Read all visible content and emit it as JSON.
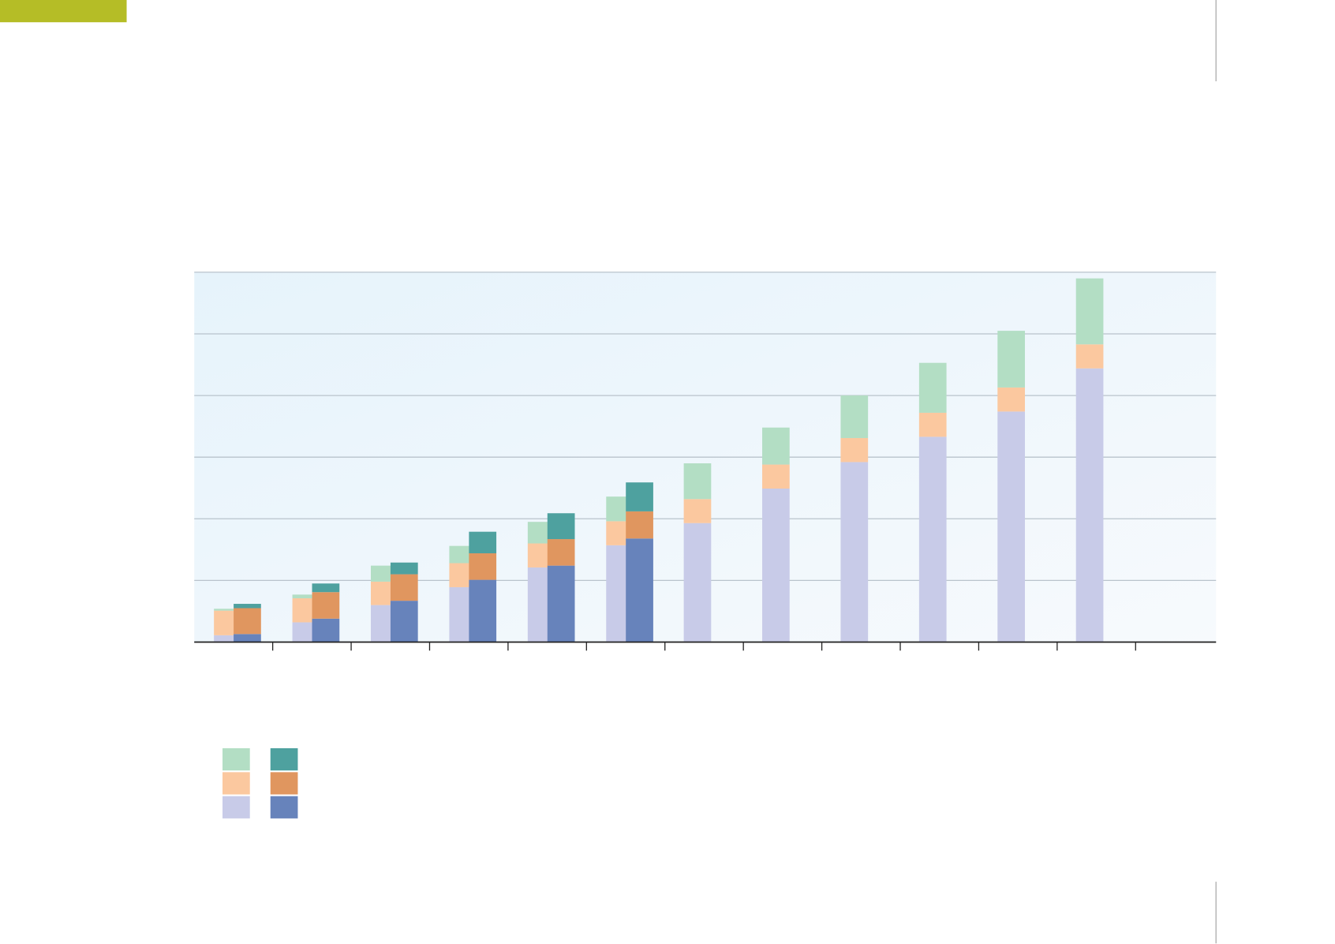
{
  "chart_data": {
    "type": "bar",
    "stacked": true,
    "grid": true,
    "categories": [
      null,
      null,
      null,
      null,
      null,
      null,
      null,
      null,
      null,
      null,
      null,
      null
    ],
    "ylim": [
      0,
      6
    ],
    "yticks": [
      0,
      1,
      2,
      3,
      4,
      5,
      6
    ],
    "series": [
      {
        "stack": "a",
        "color": "#c8cbe8",
        "values": [
          0.11,
          0.32,
          0.6,
          0.89,
          1.21,
          1.57,
          1.93,
          2.49,
          2.92,
          3.33,
          3.74,
          4.44
        ]
      },
      {
        "stack": "a",
        "color": "#fbc89f",
        "values": [
          0.4,
          0.39,
          0.38,
          0.39,
          0.39,
          0.39,
          0.39,
          0.39,
          0.39,
          0.39,
          0.39,
          0.39
        ]
      },
      {
        "stack": "a",
        "color": "#b3dec4",
        "values": [
          0.03,
          0.06,
          0.26,
          0.28,
          0.35,
          0.4,
          0.58,
          0.6,
          0.69,
          0.81,
          0.92,
          1.07
        ]
      },
      {
        "stack": "b",
        "color": "#6783bb",
        "values": [
          0.13,
          0.38,
          0.67,
          1.01,
          1.24,
          1.68,
          null,
          null,
          null,
          null,
          null,
          null
        ]
      },
      {
        "stack": "b",
        "color": "#e0965f",
        "values": [
          0.42,
          0.43,
          0.43,
          0.43,
          0.43,
          0.44,
          null,
          null,
          null,
          null,
          null,
          null
        ]
      },
      {
        "stack": "b",
        "color": "#4ea19f",
        "values": [
          0.07,
          0.14,
          0.19,
          0.35,
          0.42,
          0.47,
          null,
          null,
          null,
          null,
          null,
          null
        ]
      }
    ]
  }
}
